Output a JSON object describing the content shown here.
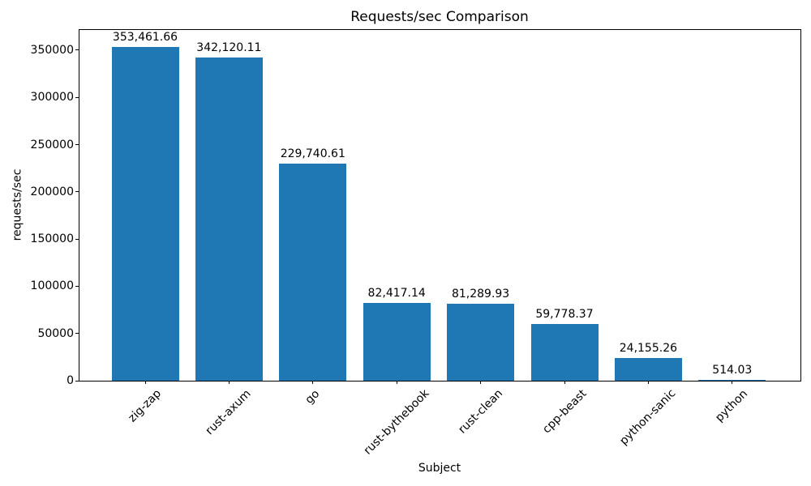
{
  "chart_data": {
    "type": "bar",
    "title": "Requests/sec Comparison",
    "xlabel": "Subject",
    "ylabel": "requests/sec",
    "categories": [
      "zig-zap",
      "rust-axum",
      "go",
      "rust-bythebook",
      "rust-clean",
      "cpp-beast",
      "python-sanic",
      "python"
    ],
    "values": [
      353461.66,
      342120.11,
      229740.61,
      82417.14,
      81289.93,
      59778.37,
      24155.26,
      514.03
    ],
    "value_labels": [
      "353,461.66",
      "342,120.11",
      "229,740.61",
      "82,417.14",
      "81,289.93",
      "59,778.37",
      "24,155.26",
      "514.03"
    ],
    "y_ticks": [
      0,
      50000,
      100000,
      150000,
      200000,
      250000,
      300000,
      350000
    ],
    "y_tick_labels": [
      "0",
      "50000",
      "100000",
      "150000",
      "200000",
      "250000",
      "300000",
      "350000"
    ],
    "ylim": [
      0,
      372300
    ],
    "x_tick_rotation_deg": 45,
    "bar_color": "#1f77b4",
    "axis_color": "#000000",
    "text_color": "#000000",
    "background_color": "#ffffff",
    "grid": false,
    "legend_position": "none"
  }
}
